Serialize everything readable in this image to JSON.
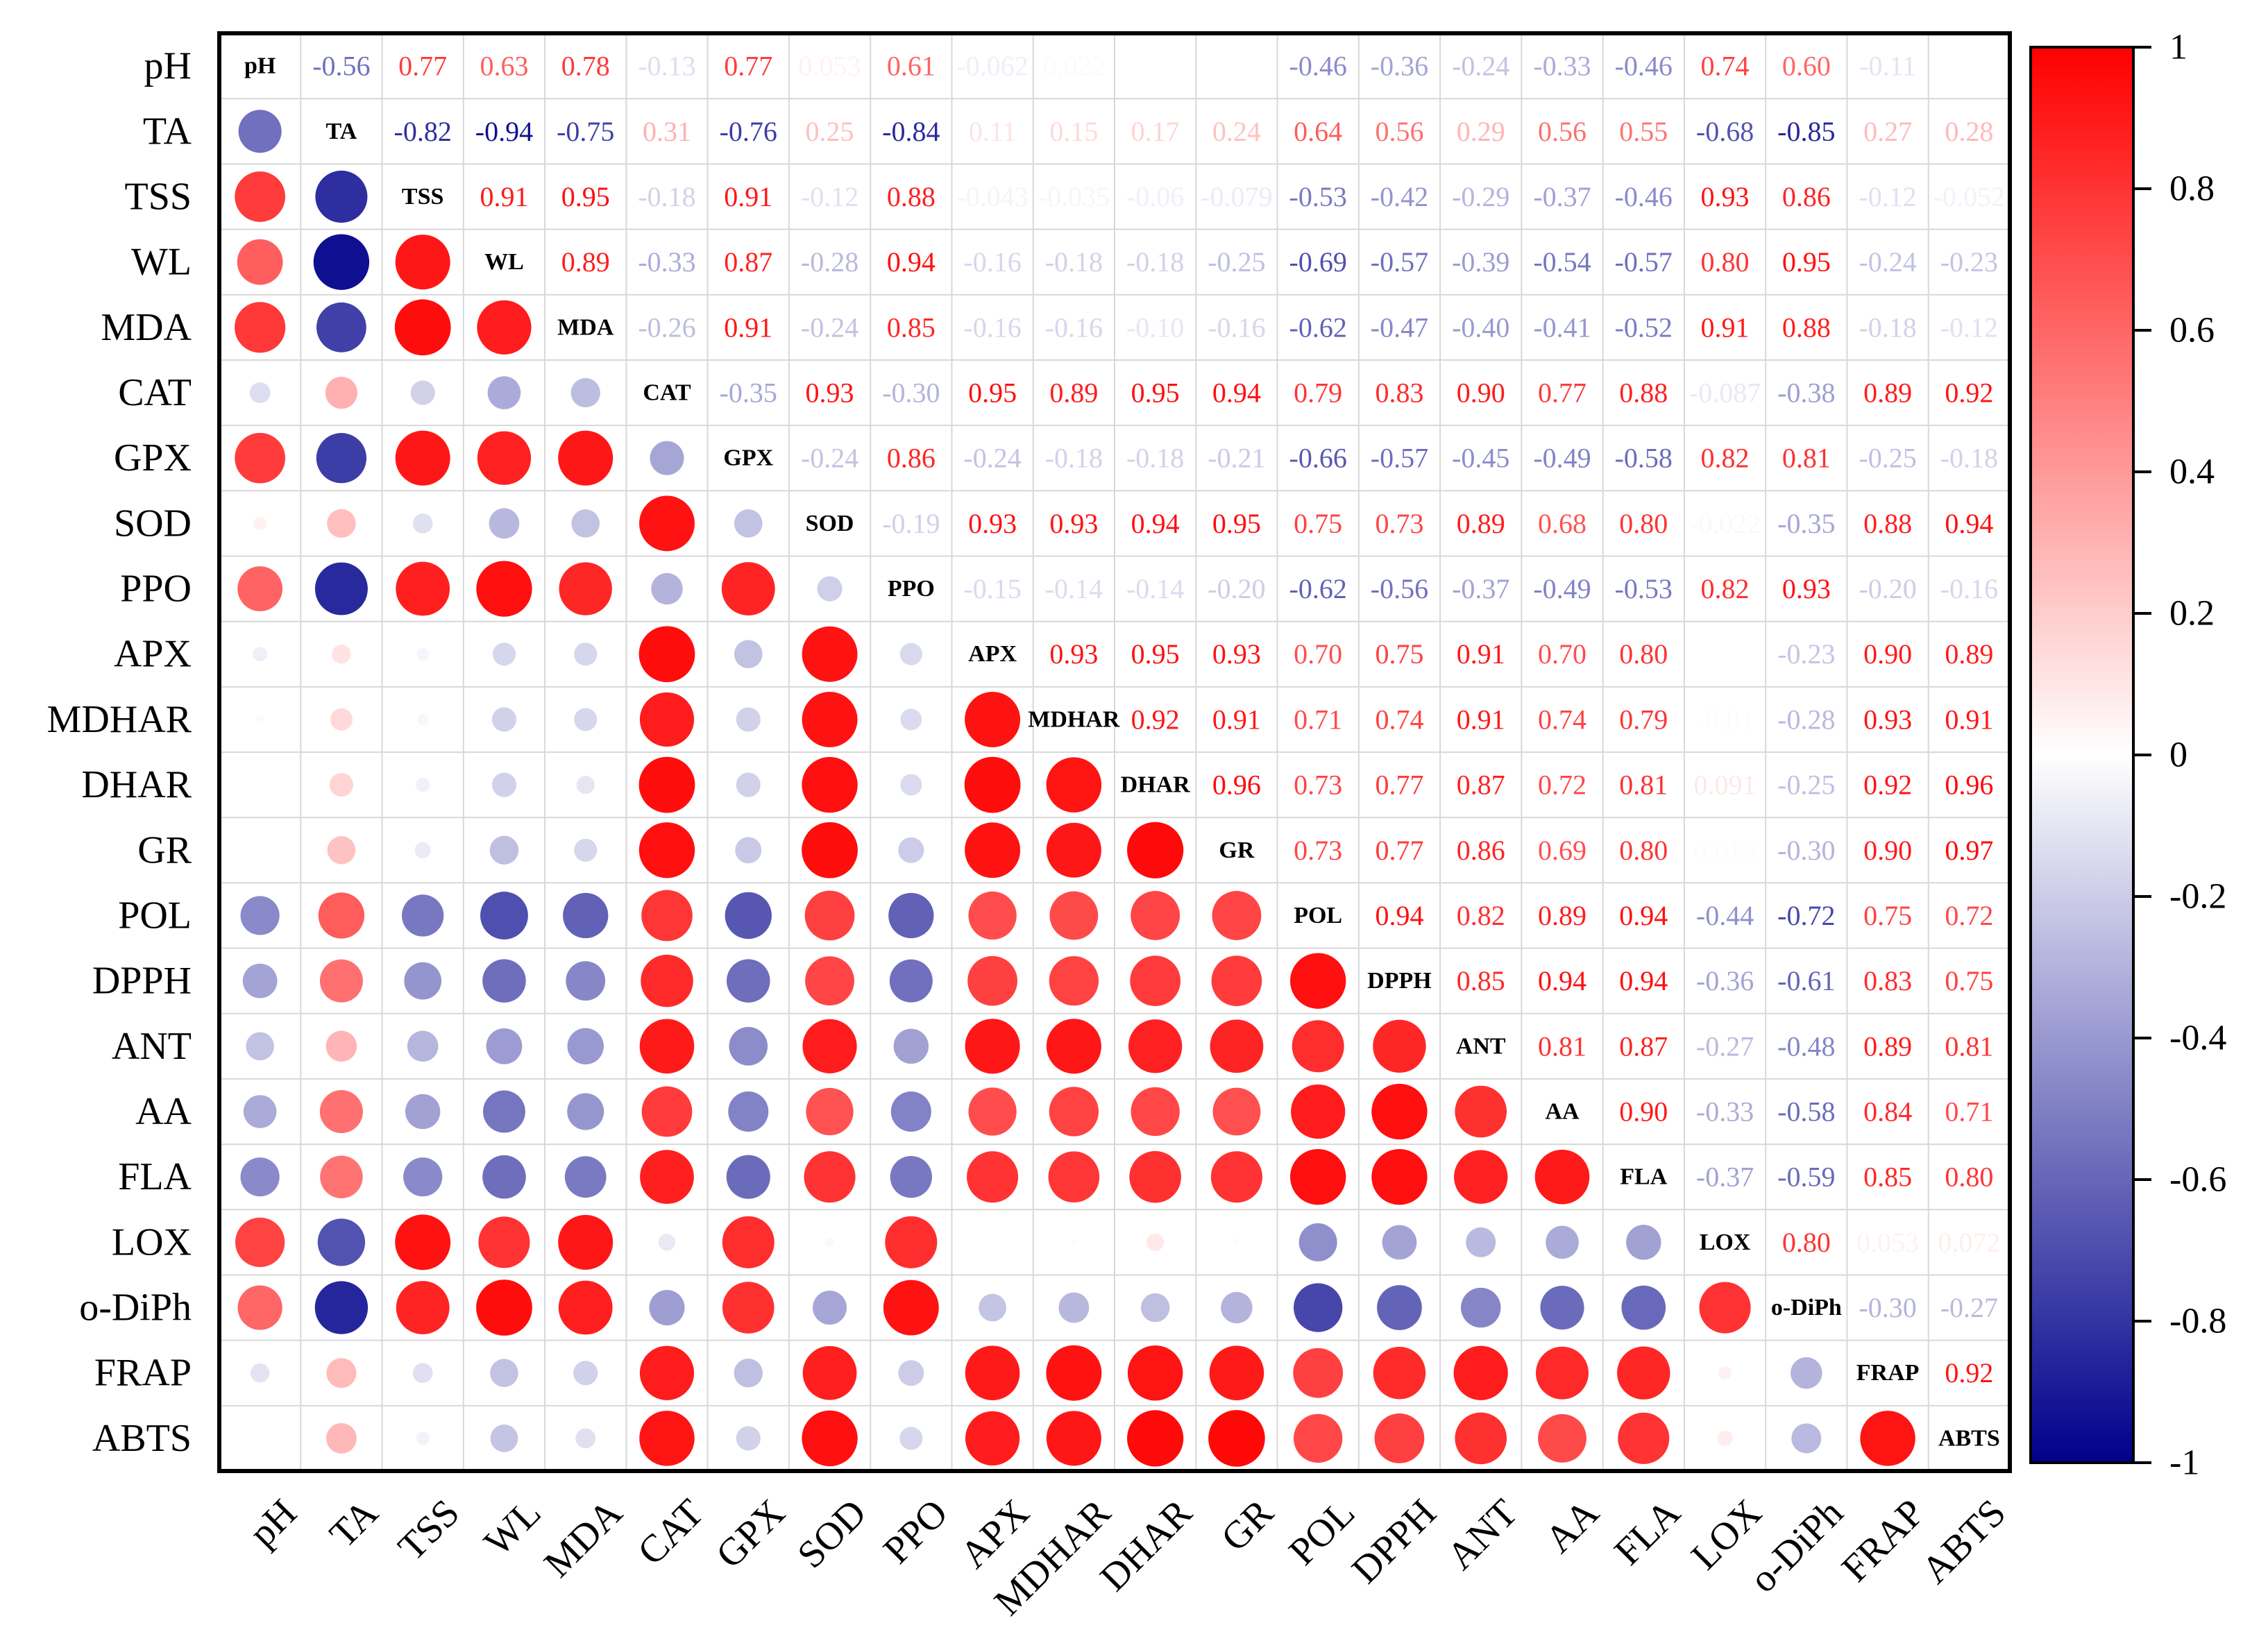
{
  "chart_data": {
    "type": "heatmap",
    "title": "",
    "variables": [
      "pH",
      "TA",
      "TSS",
      "WL",
      "MDA",
      "CAT",
      "GPX",
      "SOD",
      "PPO",
      "APX",
      "MDHAR",
      "DHAR",
      "GR",
      "POL",
      "DPPH",
      "ANT",
      "AA",
      "FLA",
      "LOX",
      "o-DiPh",
      "FRAP",
      "ABTS"
    ],
    "upper_triangle_labels": [
      [
        "-0.56",
        "0.77",
        "0.63",
        "0.78",
        "-0.13",
        "0.77",
        "0.053",
        "0.61",
        "-0.062",
        "0.022",
        "0",
        "0",
        "-0.46",
        "-0.36",
        "-0.24",
        "-0.33",
        "-0.46",
        "0.74",
        "0.60",
        "-0.11",
        "0"
      ],
      [
        "-0.82",
        "-0.94",
        "-0.75",
        "0.31",
        "-0.76",
        "0.25",
        "-0.84",
        "0.11",
        "0.15",
        "0.17",
        "0.24",
        "0.64",
        "0.56",
        "0.29",
        "0.56",
        "0.55",
        "-0.68",
        "-0.85",
        "0.27",
        "0.28"
      ],
      [
        "0.91",
        "0.95",
        "-0.18",
        "0.91",
        "-0.12",
        "0.88",
        "-0.043",
        "-0.035",
        "-0.06",
        "-0.079",
        "-0.53",
        "-0.42",
        "-0.29",
        "-0.37",
        "-0.46",
        "0.93",
        "0.86",
        "-0.12",
        "-0.052"
      ],
      [
        "0.89",
        "-0.33",
        "0.87",
        "-0.28",
        "0.94",
        "-0.16",
        "-0.18",
        "-0.18",
        "-0.25",
        "-0.69",
        "-0.57",
        "-0.39",
        "-0.54",
        "-0.57",
        "0.80",
        "0.95",
        "-0.24",
        "-0.23"
      ],
      [
        "-0.26",
        "0.91",
        "-0.24",
        "0.85",
        "-0.16",
        "-0.16",
        "-0.10",
        "-0.16",
        "-0.62",
        "-0.47",
        "-0.40",
        "-0.41",
        "-0.52",
        "0.91",
        "0.88",
        "-0.18",
        "-0.12"
      ],
      [
        "-0.35",
        "0.93",
        "-0.30",
        "0.95",
        "0.89",
        "0.95",
        "0.94",
        "0.79",
        "0.83",
        "0.90",
        "0.77",
        "0.88",
        "-0.087",
        "-0.38",
        "0.89",
        "0.92"
      ],
      [
        "-0.24",
        "0.86",
        "-0.24",
        "-0.18",
        "-0.18",
        "-0.21",
        "-0.66",
        "-0.57",
        "-0.45",
        "-0.49",
        "-0.58",
        "0.82",
        "0.81",
        "-0.25",
        "-0.18"
      ],
      [
        "-0.19",
        "0.93",
        "0.93",
        "0.94",
        "0.95",
        "0.75",
        "0.73",
        "0.89",
        "0.68",
        "0.80",
        "-0.022",
        "-0.35",
        "0.88",
        "0.94"
      ],
      [
        "-0.15",
        "-0.14",
        "-0.14",
        "-0.20",
        "-0.62",
        "-0.56",
        "-0.37",
        "-0.49",
        "-0.53",
        "0.82",
        "0.93",
        "-0.20",
        "-0.16"
      ],
      [
        "0.93",
        "0.95",
        "0.93",
        "0.70",
        "0.75",
        "0.91",
        "0.70",
        "0.80",
        "0",
        "-0.23",
        "0.90",
        "0.89"
      ],
      [
        "0.92",
        "0.91",
        "0.71",
        "0.74",
        "0.91",
        "0.74",
        "0.79",
        "-0.01",
        "-0.28",
        "0.93",
        "0.91"
      ],
      [
        "0.96",
        "0.73",
        "0.77",
        "0.87",
        "0.72",
        "0.81",
        "0.091",
        "-0.25",
        "0.92",
        "0.96"
      ],
      [
        "0.73",
        "0.77",
        "0.86",
        "0.69",
        "0.80",
        "0.015",
        "-0.30",
        "0.90",
        "0.97"
      ],
      [
        "0.94",
        "0.82",
        "0.89",
        "0.94",
        "-0.44",
        "-0.72",
        "0.75",
        "0.72"
      ],
      [
        "0.85",
        "0.94",
        "0.94",
        "-0.36",
        "-0.61",
        "0.83",
        "0.75"
      ],
      [
        "0.81",
        "0.87",
        "-0.27",
        "-0.48",
        "0.89",
        "0.81"
      ],
      [
        "0.90",
        "-0.33",
        "-0.58",
        "0.84",
        "0.71"
      ],
      [
        "-0.37",
        "-0.59",
        "0.85",
        "0.80"
      ],
      [
        "0.80",
        "0.053",
        "0.072"
      ],
      [
        "-0.30",
        "-0.27"
      ],
      [
        "0.92"
      ],
      []
    ],
    "colorbar": {
      "min": -1,
      "max": 1,
      "ticks": [
        "1",
        "0.8",
        "0.6",
        "0.4",
        "0.2",
        "0",
        "-0.2",
        "-0.4",
        "-0.6",
        "-0.8",
        "-1"
      ],
      "colors": {
        "negative": "#00008b",
        "zero": "#ffffff",
        "positive": "#ff0000"
      }
    },
    "lower_triangle": "circles sized and coloured by |r|",
    "grid": true
  }
}
